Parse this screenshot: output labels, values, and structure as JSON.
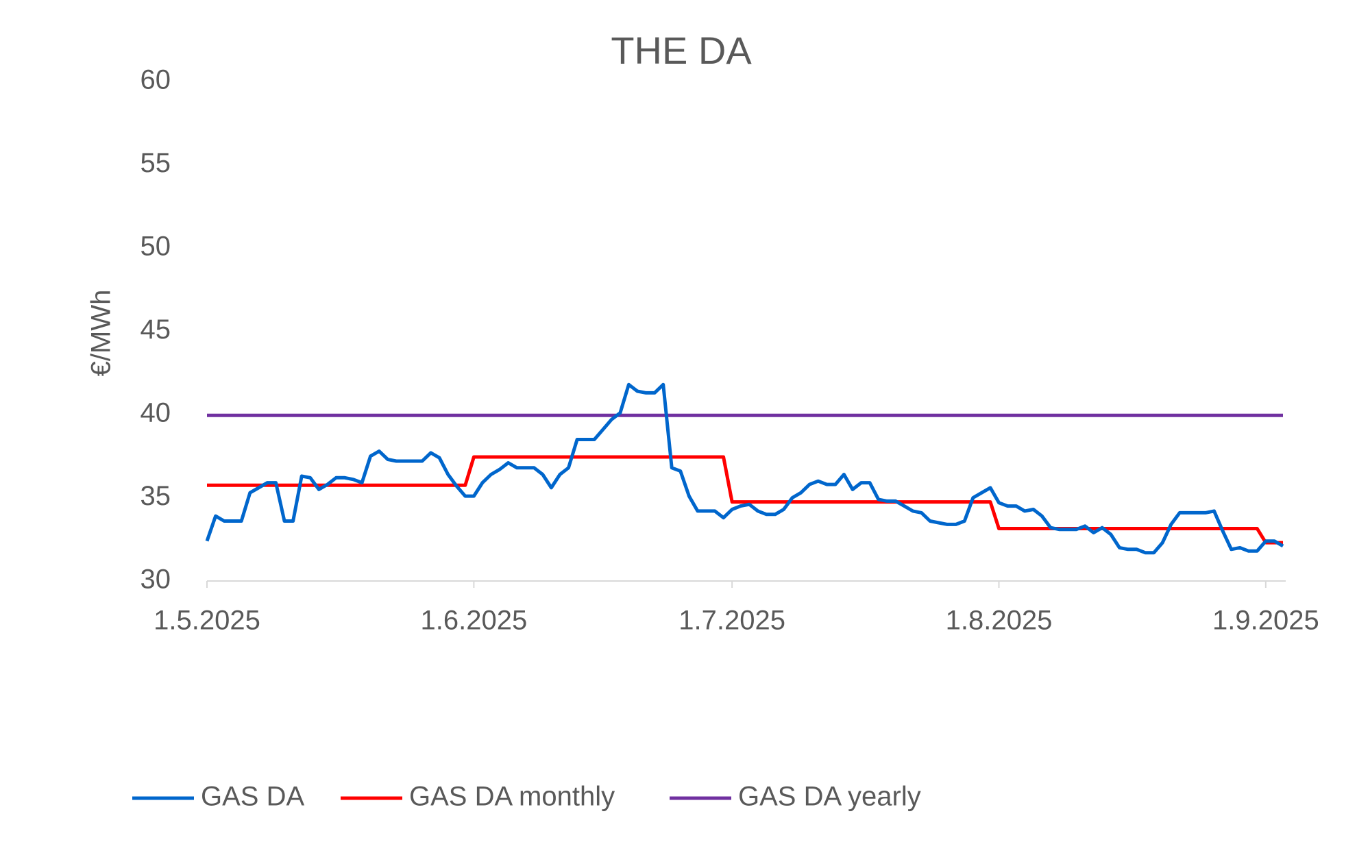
{
  "chart_data": {
    "type": "line",
    "title": "THE DA",
    "y_label": "€/MWh",
    "x": [
      "2025-05-01",
      "2025-05-02",
      "2025-05-03",
      "2025-05-04",
      "2025-05-05",
      "2025-05-06",
      "2025-05-07",
      "2025-05-08",
      "2025-05-09",
      "2025-05-10",
      "2025-05-11",
      "2025-05-12",
      "2025-05-13",
      "2025-05-14",
      "2025-05-15",
      "2025-05-16",
      "2025-05-17",
      "2025-05-18",
      "2025-05-19",
      "2025-05-20",
      "2025-05-21",
      "2025-05-22",
      "2025-05-23",
      "2025-05-24",
      "2025-05-25",
      "2025-05-26",
      "2025-05-27",
      "2025-05-28",
      "2025-05-29",
      "2025-05-30",
      "2025-05-31",
      "2025-06-01",
      "2025-06-02",
      "2025-06-03",
      "2025-06-04",
      "2025-06-05",
      "2025-06-06",
      "2025-06-07",
      "2025-06-08",
      "2025-06-09",
      "2025-06-10",
      "2025-06-11",
      "2025-06-12",
      "2025-06-13",
      "2025-06-14",
      "2025-06-15",
      "2025-06-16",
      "2025-06-17",
      "2025-06-18",
      "2025-06-19",
      "2025-06-20",
      "2025-06-21",
      "2025-06-22",
      "2025-06-23",
      "2025-06-24",
      "2025-06-25",
      "2025-06-26",
      "2025-06-27",
      "2025-06-28",
      "2025-06-29",
      "2025-06-30",
      "2025-07-01",
      "2025-07-02",
      "2025-07-03",
      "2025-07-04",
      "2025-07-05",
      "2025-07-06",
      "2025-07-07",
      "2025-07-08",
      "2025-07-09",
      "2025-07-10",
      "2025-07-11",
      "2025-07-12",
      "2025-07-13",
      "2025-07-14",
      "2025-07-15",
      "2025-07-16",
      "2025-07-17",
      "2025-07-18",
      "2025-07-19",
      "2025-07-20",
      "2025-07-21",
      "2025-07-22",
      "2025-07-23",
      "2025-07-24",
      "2025-07-25",
      "2025-07-26",
      "2025-07-27",
      "2025-07-28",
      "2025-07-29",
      "2025-07-30",
      "2025-07-31",
      "2025-08-01",
      "2025-08-02",
      "2025-08-03",
      "2025-08-04",
      "2025-08-05",
      "2025-08-06",
      "2025-08-07",
      "2025-08-08",
      "2025-08-09",
      "2025-08-10",
      "2025-08-11",
      "2025-08-12",
      "2025-08-13",
      "2025-08-14",
      "2025-08-15",
      "2025-08-16",
      "2025-08-17",
      "2025-08-18",
      "2025-08-19",
      "2025-08-20",
      "2025-08-21",
      "2025-08-22",
      "2025-08-23",
      "2025-08-24",
      "2025-08-25",
      "2025-08-26",
      "2025-08-27",
      "2025-08-28",
      "2025-08-29",
      "2025-08-30",
      "2025-08-31",
      "2025-09-01",
      "2025-09-02",
      "2025-09-03"
    ],
    "series": [
      {
        "name": "GAS DA",
        "color": "#0066CC",
        "values": [
          32.4,
          33.9,
          33.6,
          33.6,
          33.6,
          35.3,
          35.6,
          35.9,
          35.9,
          33.6,
          33.6,
          36.3,
          36.2,
          35.5,
          35.8,
          36.2,
          36.2,
          36.1,
          35.9,
          37.5,
          37.8,
          37.3,
          37.2,
          37.2,
          37.2,
          37.2,
          37.7,
          37.4,
          36.4,
          35.7,
          35.1,
          35.1,
          35.9,
          36.4,
          36.7,
          37.1,
          36.8,
          36.8,
          36.8,
          36.4,
          35.6,
          36.4,
          36.8,
          38.5,
          38.5,
          38.5,
          39.1,
          39.7,
          40.1,
          41.8,
          41.4,
          41.3,
          41.3,
          41.8,
          36.8,
          36.6,
          35.1,
          34.2,
          34.2,
          34.2,
          33.8,
          34.3,
          34.5,
          34.6,
          34.2,
          34.0,
          34.0,
          34.3,
          35.0,
          35.3,
          35.8,
          36.0,
          35.8,
          35.8,
          36.4,
          35.5,
          35.9,
          35.9,
          34.9,
          34.8,
          34.8,
          34.5,
          34.2,
          34.1,
          33.6,
          33.5,
          33.4,
          33.4,
          33.6,
          35.0,
          35.3,
          35.6,
          34.7,
          34.5,
          34.5,
          34.2,
          34.3,
          33.9,
          33.2,
          33.1,
          33.1,
          33.1,
          33.3,
          32.9,
          33.2,
          32.8,
          32.0,
          31.9,
          31.9,
          31.7,
          31.7,
          32.3,
          33.4,
          34.1,
          34.1,
          34.1,
          34.1,
          34.2,
          33.0,
          31.9,
          32.0,
          31.8,
          31.8,
          32.4,
          32.4,
          32.1
        ]
      },
      {
        "name": "GAS DA monthly",
        "color": "#FF0000",
        "values": [
          35.75,
          35.75,
          35.75,
          35.75,
          35.75,
          35.75,
          35.75,
          35.75,
          35.75,
          35.75,
          35.75,
          35.75,
          35.75,
          35.75,
          35.75,
          35.75,
          35.75,
          35.75,
          35.75,
          35.75,
          35.75,
          35.75,
          35.75,
          35.75,
          35.75,
          35.75,
          35.75,
          35.75,
          35.75,
          35.75,
          35.75,
          37.45,
          37.45,
          37.45,
          37.45,
          37.45,
          37.45,
          37.45,
          37.45,
          37.45,
          37.45,
          37.45,
          37.45,
          37.45,
          37.45,
          37.45,
          37.45,
          37.45,
          37.45,
          37.45,
          37.45,
          37.45,
          37.45,
          37.45,
          37.45,
          37.45,
          37.45,
          37.45,
          37.45,
          37.45,
          37.45,
          34.75,
          34.75,
          34.75,
          34.75,
          34.75,
          34.75,
          34.75,
          34.75,
          34.75,
          34.75,
          34.75,
          34.75,
          34.75,
          34.75,
          34.75,
          34.75,
          34.75,
          34.75,
          34.75,
          34.75,
          34.75,
          34.75,
          34.75,
          34.75,
          34.75,
          34.75,
          34.75,
          34.75,
          34.75,
          34.75,
          34.75,
          33.15,
          33.15,
          33.15,
          33.15,
          33.15,
          33.15,
          33.15,
          33.15,
          33.15,
          33.15,
          33.15,
          33.15,
          33.15,
          33.15,
          33.15,
          33.15,
          33.15,
          33.15,
          33.15,
          33.15,
          33.15,
          33.15,
          33.15,
          33.15,
          33.15,
          33.15,
          33.15,
          33.15,
          33.15,
          33.15,
          33.15,
          32.3,
          32.3,
          32.3
        ]
      },
      {
        "name": "GAS DA yearly",
        "color": "#7030A0",
        "values": [
          39.95,
          39.95,
          39.95,
          39.95,
          39.95,
          39.95,
          39.95,
          39.95,
          39.95,
          39.95,
          39.95,
          39.95,
          39.95,
          39.95,
          39.95,
          39.95,
          39.95,
          39.95,
          39.95,
          39.95,
          39.95,
          39.95,
          39.95,
          39.95,
          39.95,
          39.95,
          39.95,
          39.95,
          39.95,
          39.95,
          39.95,
          39.95,
          39.95,
          39.95,
          39.95,
          39.95,
          39.95,
          39.95,
          39.95,
          39.95,
          39.95,
          39.95,
          39.95,
          39.95,
          39.95,
          39.95,
          39.95,
          39.95,
          39.95,
          39.95,
          39.95,
          39.95,
          39.95,
          39.95,
          39.95,
          39.95,
          39.95,
          39.95,
          39.95,
          39.95,
          39.95,
          39.95,
          39.95,
          39.95,
          39.95,
          39.95,
          39.95,
          39.95,
          39.95,
          39.95,
          39.95,
          39.95,
          39.95,
          39.95,
          39.95,
          39.95,
          39.95,
          39.95,
          39.95,
          39.95,
          39.95,
          39.95,
          39.95,
          39.95,
          39.95,
          39.95,
          39.95,
          39.95,
          39.95,
          39.95,
          39.95,
          39.95,
          39.95,
          39.95,
          39.95,
          39.95,
          39.95,
          39.95,
          39.95,
          39.95,
          39.95,
          39.95,
          39.95,
          39.95,
          39.95,
          39.95,
          39.95,
          39.95,
          39.95,
          39.95,
          39.95,
          39.95,
          39.95,
          39.95,
          39.95,
          39.95,
          39.95,
          39.95,
          39.95,
          39.95,
          39.95,
          39.95,
          39.95,
          39.95,
          39.95,
          39.95
        ]
      }
    ],
    "xlim": [
      "2025-05-01",
      "2025-09-03"
    ],
    "xticks": [
      {
        "value": "2025-05-01",
        "label": "1.5.2025"
      },
      {
        "value": "2025-06-01",
        "label": "1.6.2025"
      },
      {
        "value": "2025-07-01",
        "label": "1.7.2025"
      },
      {
        "value": "2025-08-01",
        "label": "1.8.2025"
      },
      {
        "value": "2025-09-01",
        "label": "1.9.2025"
      }
    ],
    "ylim": [
      30,
      60
    ],
    "yticks": [
      30,
      35,
      40,
      45,
      50,
      55,
      60
    ],
    "grid": false,
    "legend": "bottom"
  }
}
